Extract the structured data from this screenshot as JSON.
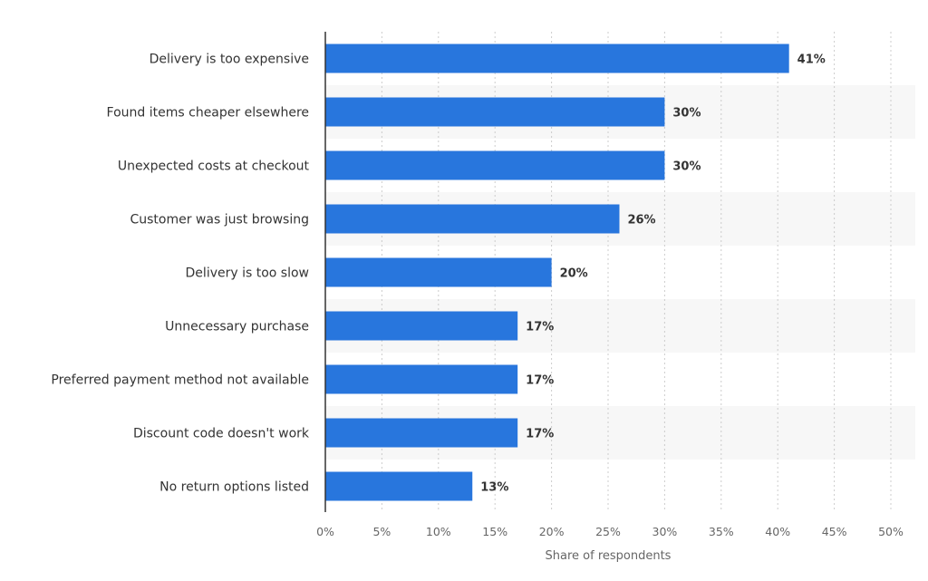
{
  "chart_data": {
    "type": "bar",
    "orientation": "horizontal",
    "categories": [
      "Delivery is too expensive",
      "Found items cheaper elsewhere",
      "Unexpected costs at checkout",
      "Customer was just browsing",
      "Delivery is too slow",
      "Unnecessary purchase",
      "Preferred payment method not available",
      "Discount code doesn't work",
      "No return options listed"
    ],
    "values": [
      41,
      30,
      30,
      26,
      20,
      17,
      17,
      17,
      13
    ],
    "value_labels": [
      "41%",
      "30%",
      "30%",
      "26%",
      "20%",
      "17%",
      "17%",
      "17%",
      "13%"
    ],
    "xlabel": "Share of respondents",
    "ylabel": "",
    "xlim": [
      0,
      50
    ],
    "ticks": [
      0,
      5,
      10,
      15,
      20,
      25,
      30,
      35,
      40,
      45,
      50
    ],
    "tick_labels": [
      "0%",
      "5%",
      "10%",
      "15%",
      "20%",
      "25%",
      "30%",
      "35%",
      "40%",
      "45%",
      "50%"
    ],
    "grid": true,
    "bar_color": "#2876dd",
    "band_color": "#f7f7f7"
  }
}
